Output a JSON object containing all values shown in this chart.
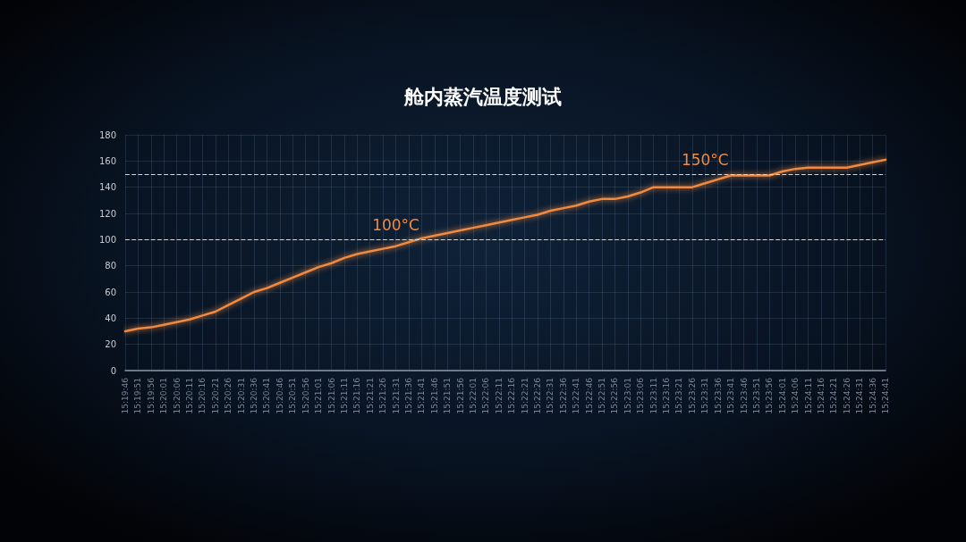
{
  "chart_data": {
    "type": "line",
    "title": "舱内蒸汽温度测试",
    "categories": [
      "15:19:46",
      "15:19:51",
      "15:19:56",
      "15:20:01",
      "15:20:06",
      "15:20:11",
      "15:20:16",
      "15:20:21",
      "15:20:26",
      "15:20:31",
      "15:20:36",
      "15:20:41",
      "15:20:46",
      "15:20:51",
      "15:20:56",
      "15:21:01",
      "15:21:06",
      "15:21:11",
      "15:21:16",
      "15:21:21",
      "15:21:26",
      "15:21:31",
      "15:21:36",
      "15:21:41",
      "15:21:46",
      "15:21:51",
      "15:21:56",
      "15:22:01",
      "15:22:06",
      "15:22:11",
      "15:22:16",
      "15:22:21",
      "15:22:26",
      "15:22:31",
      "15:22:36",
      "15:22:41",
      "15:22:46",
      "15:22:51",
      "15:22:56",
      "15:23:01",
      "15:23:06",
      "15:23:11",
      "15:23:16",
      "15:23:21",
      "15:23:26",
      "15:23:31",
      "15:23:36",
      "15:23:41",
      "15:23:46",
      "15:23:51",
      "15:23:56",
      "15:24:01",
      "15:24:06",
      "15:24:11",
      "15:24:16",
      "15:24:21",
      "15:24:26",
      "15:24:31",
      "15:24:36",
      "15:24:41"
    ],
    "series": [
      {
        "color": "#f08a40",
        "values": [
          30,
          32,
          33,
          35,
          37,
          39,
          42,
          45,
          50,
          55,
          60,
          63,
          67,
          71,
          75,
          79,
          82,
          86,
          89,
          91,
          93,
          95,
          98,
          101,
          103,
          105,
          107,
          109,
          111,
          113,
          115,
          117,
          119,
          122,
          124,
          126,
          129,
          131,
          131,
          133,
          136,
          140,
          140,
          140,
          140,
          143,
          146,
          149,
          149,
          149,
          149,
          152,
          154,
          155,
          155,
          155,
          155,
          157,
          159,
          161
        ]
      }
    ],
    "ylim": [
      0,
      180
    ],
    "yticks": [
      0,
      20,
      40,
      60,
      80,
      100,
      120,
      140,
      160,
      180
    ],
    "grid": true,
    "marker": "none",
    "line_style": "solid",
    "ref_lines": [
      {
        "axis": "y",
        "value": 100,
        "color": "#d8d8d8",
        "line_style": "dashed"
      },
      {
        "axis": "y",
        "value": 150,
        "color": "#d8d8d8",
        "line_style": "dashed"
      }
    ],
    "annotations": [
      {
        "text": "100°C",
        "x": "15:21:31",
        "y": 100
      },
      {
        "text": "150°C",
        "x": "15:23:31",
        "y": 150
      }
    ]
  }
}
